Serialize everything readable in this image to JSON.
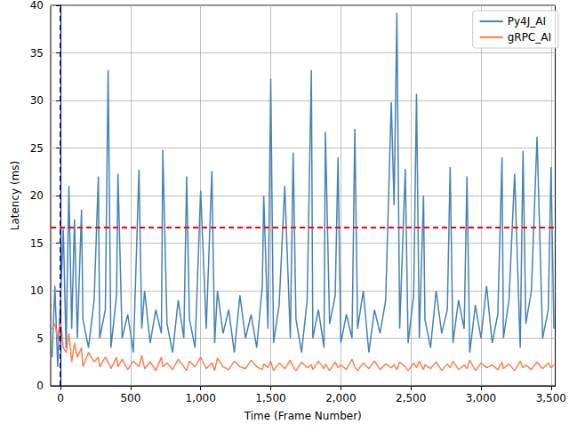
{
  "chart_data": {
    "type": "line",
    "x_label": "Time (Frame Number)",
    "y_label": "Latency (ms)",
    "xlim": [
      -70,
      3530
    ],
    "xticks": [
      0,
      500,
      1000,
      1500,
      2000,
      2500,
      3000,
      3500
    ],
    "ylim": [
      0,
      40
    ],
    "yticks": [
      0,
      5,
      10,
      15,
      20,
      25,
      30,
      35,
      40
    ],
    "grid": true,
    "legend": "upper right",
    "x": [
      -60,
      -40,
      -20,
      0,
      20,
      40,
      60,
      80,
      100,
      120,
      150,
      160,
      200,
      240,
      270,
      280,
      320,
      340,
      360,
      400,
      410,
      440,
      480,
      520,
      560,
      580,
      600,
      640,
      680,
      720,
      730,
      760,
      800,
      840,
      880,
      900,
      920,
      960,
      1000,
      1040,
      1080,
      1100,
      1120,
      1160,
      1200,
      1240,
      1280,
      1320,
      1360,
      1400,
      1440,
      1450,
      1480,
      1500,
      1520,
      1560,
      1600,
      1640,
      1660,
      1680,
      1720,
      1760,
      1790,
      1800,
      1840,
      1880,
      1890,
      1920,
      1960,
      1980,
      2000,
      2040,
      2080,
      2100,
      2120,
      2160,
      2200,
      2240,
      2280,
      2320,
      2360,
      2380,
      2400,
      2420,
      2460,
      2480,
      2520,
      2540,
      2560,
      2590,
      2600,
      2640,
      2680,
      2720,
      2760,
      2780,
      2800,
      2840,
      2880,
      2900,
      2920,
      2960,
      3000,
      3040,
      3080,
      3120,
      3150,
      3160,
      3200,
      3240,
      3280,
      3300,
      3320,
      3360,
      3400,
      3440,
      3480,
      3500,
      3520
    ],
    "series": [
      {
        "name": "Py4J_AI",
        "color": "#4682b4",
        "values": [
          3,
          10.5,
          2,
          9,
          16.5,
          4,
          21,
          6,
          17.5,
          5,
          18.5,
          7,
          4,
          9,
          22,
          5,
          8,
          33.2,
          4,
          9.5,
          22.3,
          5,
          7.5,
          3.5,
          22.7,
          6,
          10,
          4.5,
          8,
          5.5,
          24.8,
          6.5,
          3.5,
          9,
          5,
          22,
          7,
          4,
          20.5,
          6,
          22.6,
          4.5,
          10,
          5.5,
          8,
          3.5,
          9.5,
          5,
          7.5,
          4,
          10.5,
          20,
          6,
          32.3,
          4.5,
          8.5,
          21,
          5,
          24.5,
          7,
          3.5,
          9,
          33.2,
          5,
          8,
          4,
          26.7,
          6.5,
          9.5,
          24,
          4.5,
          7.5,
          5,
          27,
          6,
          10,
          3.5,
          8,
          5.5,
          9,
          29.8,
          19,
          39.2,
          6,
          22.8,
          4.5,
          9.5,
          30.7,
          5,
          20,
          7,
          4,
          10,
          5.5,
          8,
          23,
          4.5,
          9,
          6,
          22,
          3.5,
          8.5,
          5,
          10.5,
          4.5,
          7.5,
          24,
          5,
          9,
          22.3,
          4,
          24.7,
          6.5,
          10,
          26.2,
          5,
          8,
          23,
          6
        ]
      },
      {
        "name": "gRPC_AI",
        "color": "#ff7f50",
        "values": [
          6,
          6.5,
          5,
          7,
          4,
          3.5,
          5.5,
          2.5,
          4.5,
          3,
          4,
          2,
          3.5,
          2.5,
          3,
          2,
          3,
          2.5,
          1.8,
          3,
          2,
          2.8,
          1.7,
          2.6,
          2,
          3.2,
          1.8,
          2.5,
          1.6,
          3,
          2,
          2.4,
          1.7,
          2.8,
          2,
          1.6,
          2.6,
          2,
          3,
          1.8,
          2.4,
          1.6,
          2.9,
          2,
          1.7,
          2.6,
          2,
          1.8,
          2.7,
          2,
          1.7,
          2.3,
          1.9,
          2.6,
          1.6,
          2.4,
          1.8,
          2.7,
          2,
          1.6,
          2.5,
          1.9,
          2.2,
          1.7,
          2.6,
          1.8,
          2.3,
          1.6,
          2.5,
          1.9,
          2.2,
          1.7,
          2.8,
          2,
          1.6,
          2.4,
          1.8,
          2.6,
          1.7,
          2.3,
          1.9,
          2.2,
          1.7,
          2.5,
          2,
          1.6,
          2.4,
          1.9,
          2.6,
          1.7,
          2.2,
          1.8,
          2.5,
          1.6,
          2.3,
          1.9,
          2.6,
          1.7,
          2.2,
          1.8,
          2.7,
          1.6,
          2.4,
          1.9,
          2.2,
          1.7,
          2.5,
          1.8,
          2.3,
          1.6,
          2.6,
          1.9,
          2.2,
          1.7,
          2.5,
          1.8,
          2.4,
          1.9,
          2.2
        ]
      }
    ],
    "reference_lines": [
      {
        "axis": "x",
        "value": 0,
        "color": "#0000cc",
        "line_style": "dashed"
      },
      {
        "axis": "y",
        "value": 16.67,
        "color": "#ff0000",
        "line_style": "dashed"
      }
    ]
  }
}
